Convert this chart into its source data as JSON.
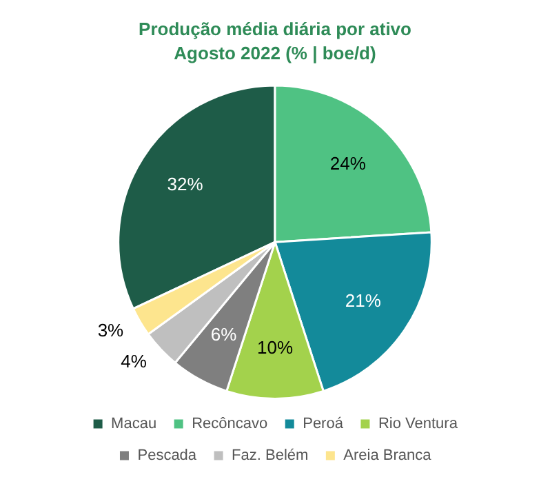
{
  "chart_data": {
    "type": "pie",
    "title": "Produção média diária por ativo",
    "subtitle": "Agosto 2022 (% | boe/d)",
    "categories": [
      "Macau",
      "Recôncavo",
      "Peroá",
      "Rio Ventura",
      "Pescada",
      "Faz. Belém",
      "Areia Branca"
    ],
    "values": [
      32,
      24,
      21,
      10,
      6,
      4,
      3
    ],
    "colors": [
      "#1e5c48",
      "#4fc283",
      "#138a9a",
      "#a3d24c",
      "#7f7f7f",
      "#bfbfbf",
      "#fde58e"
    ],
    "value_labels": [
      "32%",
      "24%",
      "21%",
      "10%",
      "6%",
      "4%",
      "3%"
    ],
    "legend": "bottom"
  }
}
